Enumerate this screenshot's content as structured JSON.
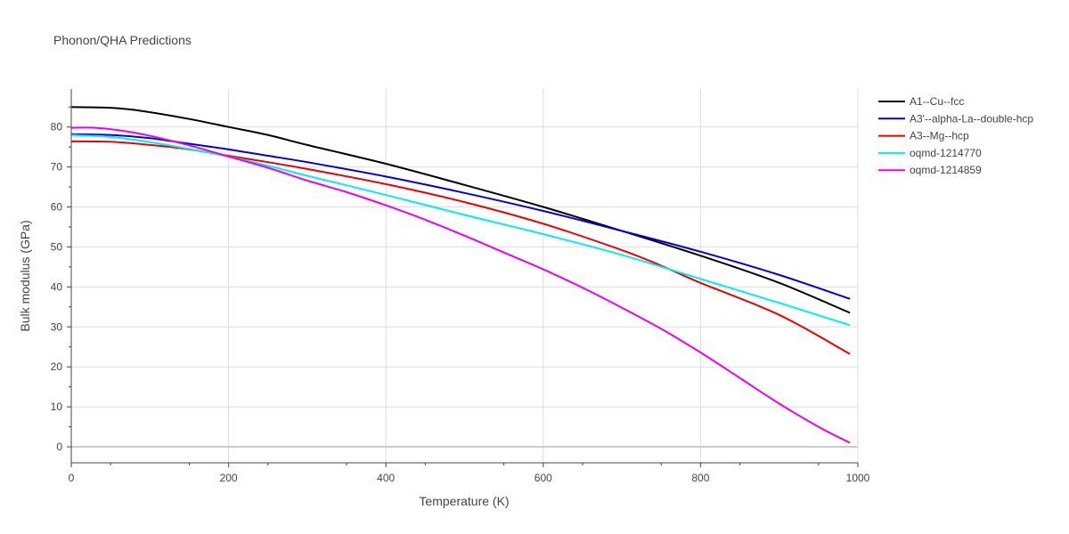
{
  "chart_data": {
    "type": "line",
    "title": "Phonon/QHA Predictions",
    "xlabel": "Temperature (K)",
    "ylabel": "Bulk modulus (GPa)",
    "xlim": [
      0,
      1000
    ],
    "ylim": [
      -4,
      89.5
    ],
    "x_ticks": [
      0,
      200,
      400,
      600,
      800,
      1000
    ],
    "y_ticks": [
      0,
      10,
      20,
      30,
      40,
      50,
      60,
      70,
      80
    ],
    "grid": true,
    "legend_position": "top-right",
    "series": [
      {
        "name": "A1--Cu--fcc",
        "color": "#000000",
        "x": [
          0,
          50,
          90,
          150,
          200,
          250,
          300,
          400,
          500,
          600,
          700,
          800,
          900,
          990
        ],
        "y": [
          85,
          84.8,
          84,
          82,
          80,
          78,
          75.5,
          70.8,
          65.5,
          60,
          54,
          47.8,
          41,
          33.5
        ]
      },
      {
        "name": "A3'--alpha-La--double-hcp",
        "color": "#0000dd",
        "x": [
          0,
          50,
          100,
          150,
          200,
          250,
          300,
          400,
          500,
          600,
          700,
          800,
          900,
          990
        ],
        "y": [
          78.2,
          78,
          77.2,
          75.8,
          74.4,
          72.8,
          71.2,
          67.6,
          63.5,
          59,
          54,
          48.8,
          43,
          37
        ]
      },
      {
        "name": "A3--Mg--hcp",
        "color": "#ee0000",
        "x": [
          0,
          50,
          100,
          150,
          200,
          250,
          300,
          400,
          500,
          600,
          700,
          750,
          800,
          900,
          990
        ],
        "y": [
          76.4,
          76.3,
          75.5,
          74.4,
          72.8,
          71.2,
          69.5,
          65.7,
          61.2,
          55.8,
          49.2,
          45.3,
          41,
          33,
          23.2
        ]
      },
      {
        "name": "oqmd-1214770",
        "color": "#00eeee",
        "x": [
          0,
          50,
          100,
          150,
          200,
          250,
          300,
          400,
          500,
          600,
          700,
          800,
          900,
          990
        ],
        "y": [
          78,
          77.5,
          76.2,
          74.5,
          72.6,
          70.3,
          67.8,
          63,
          58,
          53.2,
          48,
          42,
          36,
          30.4
        ]
      },
      {
        "name": "oqmd-1214859",
        "color": "#ee00ee",
        "x": [
          0,
          30,
          60,
          100,
          150,
          200,
          250,
          300,
          350,
          400,
          450,
          500,
          550,
          600,
          650,
          700,
          750,
          800,
          850,
          900,
          950,
          990
        ],
        "y": [
          79.8,
          79.8,
          79.2,
          77.8,
          75.4,
          72.6,
          69.8,
          66.6,
          63.7,
          60.4,
          56.8,
          52.8,
          48.6,
          44.4,
          39.8,
          34.8,
          29.5,
          23.6,
          17.2,
          10.8,
          5,
          1
        ]
      }
    ]
  }
}
